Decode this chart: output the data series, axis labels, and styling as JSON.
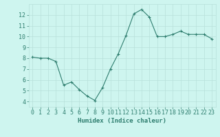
{
  "x": [
    0,
    1,
    2,
    3,
    4,
    5,
    6,
    7,
    8,
    9,
    10,
    11,
    12,
    13,
    14,
    15,
    16,
    17,
    18,
    19,
    20,
    21,
    22,
    23
  ],
  "y": [
    8.1,
    8.0,
    8.0,
    7.7,
    5.5,
    5.8,
    5.1,
    4.5,
    4.1,
    5.3,
    7.0,
    8.4,
    10.1,
    12.1,
    12.5,
    11.8,
    10.0,
    10.0,
    10.2,
    10.5,
    10.2,
    10.2,
    10.2,
    9.8
  ],
  "xlabel": "Humidex (Indice chaleur)",
  "ylim": [
    3.5,
    13.0
  ],
  "xlim": [
    -0.5,
    23.5
  ],
  "yticks": [
    4,
    5,
    6,
    7,
    8,
    9,
    10,
    11,
    12
  ],
  "xticks": [
    0,
    1,
    2,
    3,
    4,
    5,
    6,
    7,
    8,
    9,
    10,
    11,
    12,
    13,
    14,
    15,
    16,
    17,
    18,
    19,
    20,
    21,
    22,
    23
  ],
  "line_color": "#2e7d6e",
  "marker_color": "#2e7d6e",
  "bg_color": "#cef5ef",
  "grid_color": "#b8e0da",
  "text_color": "#2e7d6e",
  "xlabel_fontsize": 6.5,
  "tick_fontsize": 6.0
}
